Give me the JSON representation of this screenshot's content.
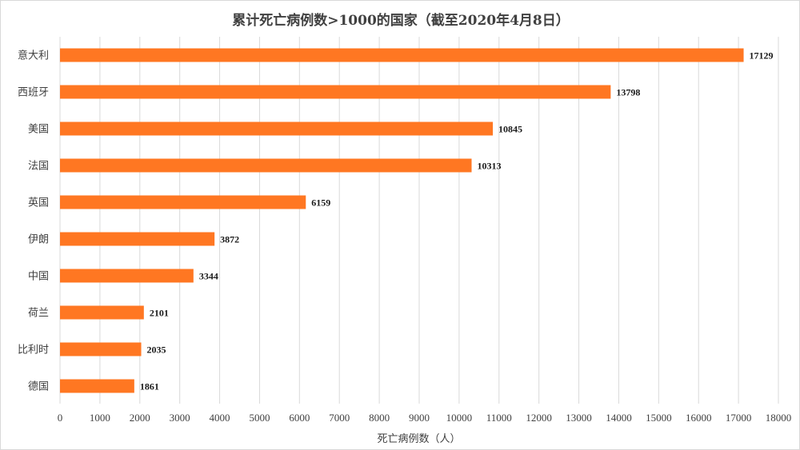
{
  "chart_data": {
    "type": "bar",
    "orientation": "horizontal",
    "title": "累计死亡病例数>1000的国家（截至2020年4月8日）",
    "xlabel": "死亡病例数（人）",
    "ylabel": "",
    "categories": [
      "意大利",
      "西班牙",
      "美国",
      "法国",
      "英国",
      "伊朗",
      "中国",
      "荷兰",
      "比利时",
      "德国"
    ],
    "values": [
      17129,
      13798,
      10845,
      10313,
      6159,
      3872,
      3344,
      2101,
      2035,
      1861
    ],
    "xlim": [
      0,
      18000
    ],
    "xticks": [
      0,
      1000,
      2000,
      3000,
      4000,
      5000,
      6000,
      7000,
      8000,
      9000,
      10000,
      11000,
      12000,
      13000,
      14000,
      15000,
      16000,
      17000,
      18000
    ],
    "grid": "vertical",
    "legend": "none",
    "data_labels": true,
    "bar_color": "#FF7722",
    "grid_color": "#d9d9d9"
  }
}
